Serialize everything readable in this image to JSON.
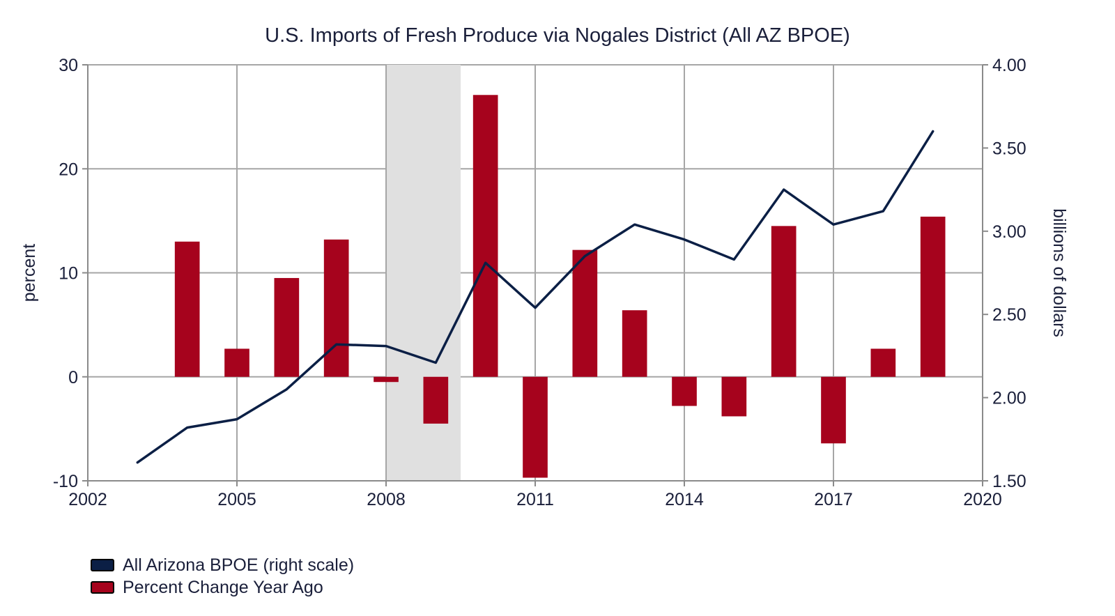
{
  "chart_data": {
    "type": "bar+line",
    "title": "U.S. Imports of Fresh Produce via Nogales District (All AZ BPOE)",
    "ylabel_left": "percent",
    "ylabel_right": "billions of dollars",
    "xlim": [
      2002,
      2020
    ],
    "ylim_left": [
      -10,
      30
    ],
    "ylim_right": [
      1.5,
      4.0
    ],
    "x_ticks": [
      "2002",
      "2005",
      "2008",
      "2011",
      "2014",
      "2017",
      "2020"
    ],
    "left_ticks": [
      "30",
      "20",
      "10",
      "0",
      "-10"
    ],
    "right_ticks": [
      "4.00",
      "3.50",
      "3.00",
      "2.50",
      "2.00",
      "1.50"
    ],
    "grid": true,
    "legend_position": "bottom-left",
    "recession_shading": {
      "start": 2008.0,
      "end": 2009.5
    },
    "series": [
      {
        "name": "All Arizona BPOE (right scale)",
        "type": "line",
        "axis": "right",
        "color": "#0b1f45",
        "x": [
          2003,
          2004,
          2005,
          2006,
          2007,
          2008,
          2009,
          2010,
          2011,
          2012,
          2013,
          2014,
          2015,
          2016,
          2017,
          2018,
          2019
        ],
        "values": [
          1.61,
          1.82,
          1.87,
          2.05,
          2.32,
          2.31,
          2.21,
          2.81,
          2.54,
          2.85,
          3.04,
          2.95,
          2.83,
          3.25,
          3.04,
          3.12,
          3.6
        ]
      },
      {
        "name": "Percent Change Year Ago",
        "type": "bar",
        "axis": "left",
        "color": "#a6031d",
        "x": [
          2004,
          2005,
          2006,
          2007,
          2008,
          2009,
          2010,
          2011,
          2012,
          2013,
          2014,
          2015,
          2016,
          2017,
          2018,
          2019
        ],
        "values": [
          13.0,
          2.7,
          9.5,
          13.2,
          -0.5,
          -4.5,
          27.1,
          -9.7,
          12.2,
          6.4,
          -2.8,
          -3.8,
          14.5,
          -6.4,
          2.7,
          15.4
        ]
      }
    ]
  }
}
